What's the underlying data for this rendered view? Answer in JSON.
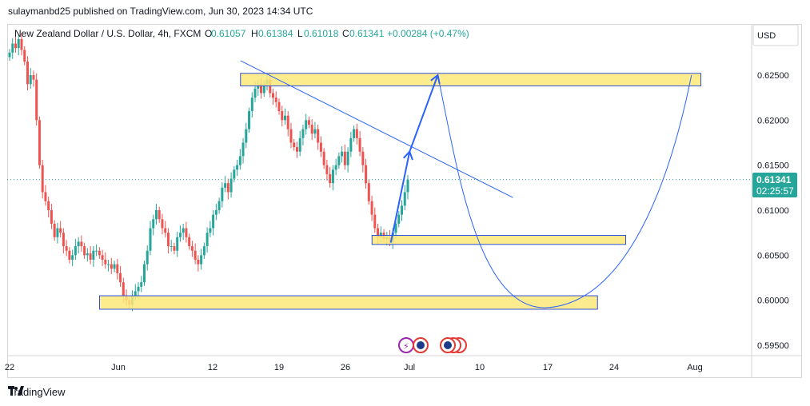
{
  "header": {
    "publisher_line": "sulaymanbd25 published on TradingView.com, Jun 30, 2023 14:34 UTC"
  },
  "legend": {
    "symbol": "New Zealand Dollar / U.S. Dollar, 4h, FXCM",
    "open_label": "O",
    "open": "0.61057",
    "high_label": "H",
    "high": "0.61384",
    "low_label": "L",
    "low": "0.61018",
    "close_label": "C",
    "close": "0.61341",
    "change": "+0.00284 (+0.47%)"
  },
  "currency": "USD",
  "price_tag": {
    "price": "0.61341",
    "countdown": "02:25:57"
  },
  "footer": {
    "brand": "TradingView"
  },
  "colors": {
    "up": "#26a69a",
    "down": "#ef5350",
    "zone_fill": "#fbe97a",
    "zone_border": "#2f4fd8",
    "trend": "#2962ff"
  },
  "chart_data": {
    "type": "candlestick",
    "y_ticks": [
      "0.62500",
      "0.62000",
      "0.61500",
      "0.61000",
      "0.60500",
      "0.60000",
      "0.59500"
    ],
    "x_ticks": [
      "22",
      "Jun",
      "12",
      "19",
      "26",
      "Jul",
      "10",
      "17",
      "24",
      "Aug"
    ],
    "close_series": [
      0.6275,
      0.6285,
      0.628,
      0.629,
      0.6278,
      0.6265,
      0.624,
      0.625,
      0.6245,
      0.62,
      0.615,
      0.612,
      0.611,
      0.61,
      0.6085,
      0.607,
      0.608,
      0.6075,
      0.606,
      0.6055,
      0.6045,
      0.605,
      0.606,
      0.6065,
      0.606,
      0.605,
      0.6052,
      0.6045,
      0.6055,
      0.6055,
      0.605,
      0.6045,
      0.604,
      0.604,
      0.6035,
      0.604,
      0.603,
      0.602,
      0.6005,
      0.6,
      0.5995,
      0.6005,
      0.601,
      0.6015,
      0.602,
      0.604,
      0.6055,
      0.608,
      0.609,
      0.61,
      0.609,
      0.608,
      0.6075,
      0.606,
      0.606,
      0.6055,
      0.607,
      0.6075,
      0.608,
      0.607,
      0.606,
      0.6055,
      0.6045,
      0.604,
      0.605,
      0.606,
      0.6075,
      0.608,
      0.6095,
      0.61,
      0.611,
      0.6125,
      0.613,
      0.612,
      0.6135,
      0.6145,
      0.615,
      0.616,
      0.6175,
      0.619,
      0.621,
      0.6225,
      0.6235,
      0.624,
      0.623,
      0.624,
      0.6245,
      0.623,
      0.6225,
      0.622,
      0.621,
      0.62,
      0.6205,
      0.619,
      0.6175,
      0.617,
      0.6165,
      0.618,
      0.619,
      0.62,
      0.6195,
      0.6185,
      0.619,
      0.6175,
      0.6165,
      0.615,
      0.614,
      0.613,
      0.6145,
      0.615,
      0.616,
      0.6165,
      0.615,
      0.6165,
      0.618,
      0.619,
      0.618,
      0.6165,
      0.615,
      0.613,
      0.611,
      0.6095,
      0.608,
      0.607,
      0.6075,
      0.6068,
      0.607,
      0.6065,
      0.6075,
      0.6085,
      0.6095,
      0.6105,
      0.612,
      0.6134
    ],
    "zones": [
      {
        "from": "Jun 14",
        "to": "Aug 2",
        "low": 0.6238,
        "high": 0.6252
      },
      {
        "from": "Jun 28",
        "to": "Jul 25",
        "low": 0.6062,
        "high": 0.6072
      },
      {
        "from": "May 30",
        "to": "Jul 22",
        "low": 0.599,
        "high": 0.6005
      }
    ],
    "trendline": {
      "from": {
        "date": "Jun 14",
        "price": 0.6266
      },
      "to": {
        "date": "Jul 13",
        "price": 0.6114
      }
    },
    "projection": [
      {
        "date": "Jun 30",
        "price": 0.6064
      },
      {
        "date": "Jul 2",
        "price": 0.6165
      },
      {
        "date": "Jul 5",
        "price": 0.625
      }
    ],
    "forecast_curve": {
      "start": {
        "date": "Jul 5",
        "price": 0.625
      },
      "bottom": {
        "date": "Jul 17",
        "price": 0.5992
      },
      "end": {
        "date": "Aug 1",
        "price": 0.625
      }
    },
    "current_price": 0.61341
  }
}
